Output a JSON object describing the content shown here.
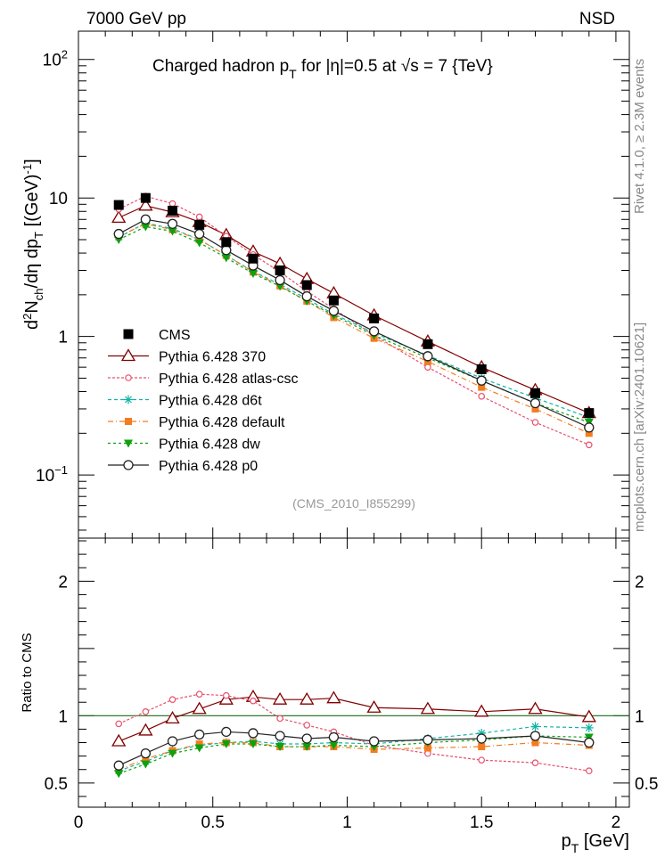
{
  "header": {
    "left": "7000 GeV pp",
    "right": "NSD",
    "title": "Charged hadron p",
    "title_sub": "T",
    "title_rest": " for |η|=0.5 at  √s = 7 {TeV}",
    "analysis_id": "(CMS_2010_I855299)",
    "side_rivet": "Rivet 4.1.0, ≥ 2.3M events",
    "side_mcplots": "mcplots.cern.ch [arXiv:2401.10621]"
  },
  "chart_data": [
    {
      "type": "line",
      "title": "Charged hadron pT for |η|=0.5 at √s = 7 {TeV}",
      "xlabel": "p_T [GeV]",
      "ylabel": "d²N_ch/dη dp_T [(GeV)⁻¹]",
      "yscale": "log",
      "xlim": [
        0,
        2.05
      ],
      "ylim": [
        0.035,
        160
      ],
      "y_ticks": [
        {
          "value": 0.1,
          "label": "10",
          "exp": "−1"
        },
        {
          "value": 1,
          "label": "1",
          "exp": ""
        },
        {
          "value": 10,
          "label": "10",
          "exp": ""
        },
        {
          "value": 100,
          "label": "10",
          "exp": "2"
        }
      ],
      "x": [
        0.15,
        0.25,
        0.35,
        0.45,
        0.55,
        0.65,
        0.75,
        0.85,
        0.95,
        1.1,
        1.3,
        1.5,
        1.7,
        1.9
      ],
      "series": [
        {
          "name": "CMS",
          "marker": "square",
          "color": "#000000",
          "dash": "",
          "values": [
            8.9,
            10.0,
            8.1,
            6.4,
            4.8,
            3.65,
            3.0,
            2.35,
            1.82,
            1.35,
            0.88,
            0.58,
            0.39,
            0.28
          ]
        },
        {
          "name": "Pythia 6.428 370",
          "marker": "triangle-open",
          "color": "#800000",
          "dash": "",
          "values": [
            7.2,
            8.8,
            7.9,
            6.7,
            5.4,
            4.1,
            3.35,
            2.6,
            2.05,
            1.42,
            0.92,
            0.6,
            0.41,
            0.28
          ]
        },
        {
          "name": "Pythia 6.428 atlas-csc",
          "marker": "circle-open-small",
          "color": "#e8506e",
          "dash": "3,2",
          "values": [
            8.3,
            10.3,
            9.1,
            7.3,
            5.3,
            3.9,
            2.92,
            2.12,
            1.58,
            1.02,
            0.6,
            0.37,
            0.24,
            0.165
          ]
        },
        {
          "name": "Pythia 6.428 d6t",
          "marker": "star",
          "color": "#12b3a3",
          "dash": "4,3",
          "values": [
            5.2,
            6.6,
            6.0,
            5.0,
            3.85,
            2.95,
            2.38,
            1.87,
            1.45,
            1.06,
            0.73,
            0.5,
            0.36,
            0.26
          ]
        },
        {
          "name": "Pythia 6.428 default",
          "marker": "square-small",
          "color": "#f47c20",
          "dash": "6,3,1,3",
          "values": [
            5.3,
            6.5,
            5.9,
            5.0,
            3.85,
            2.92,
            2.32,
            1.8,
            1.37,
            0.97,
            0.66,
            0.43,
            0.3,
            0.2
          ]
        },
        {
          "name": "Pythia 6.428 dw",
          "marker": "triangle-down",
          "color": "#0ea10e",
          "dash": "3,3",
          "values": [
            5.0,
            6.2,
            5.75,
            4.75,
            3.7,
            2.85,
            2.3,
            1.8,
            1.42,
            1.02,
            0.7,
            0.48,
            0.33,
            0.24
          ]
        },
        {
          "name": "Pythia 6.428 p0",
          "marker": "circle-open",
          "color": "#222222",
          "dash": "",
          "values": [
            5.5,
            7.0,
            6.5,
            5.5,
            4.2,
            3.25,
            2.55,
            1.95,
            1.53,
            1.09,
            0.72,
            0.48,
            0.33,
            0.22
          ]
        }
      ],
      "legend": "lower-left"
    },
    {
      "type": "line",
      "ylabel": "Ratio to CMS",
      "xlabel": "p_T [GeV]",
      "xlim": [
        0,
        2.05
      ],
      "ylim": [
        0.32,
        2.32
      ],
      "x_ticks": [
        {
          "value": 0,
          "label": "0"
        },
        {
          "value": 0.5,
          "label": "0.5"
        },
        {
          "value": 1,
          "label": "1"
        },
        {
          "value": 1.5,
          "label": "1.5"
        },
        {
          "value": 2,
          "label": "2"
        }
      ],
      "y_ticks": [
        {
          "value": 0.5,
          "label": "0.5"
        },
        {
          "value": 1,
          "label": "1"
        },
        {
          "value": 2,
          "label": "2"
        }
      ],
      "reference_line": 1,
      "x": [
        0.15,
        0.25,
        0.35,
        0.45,
        0.55,
        0.65,
        0.75,
        0.85,
        0.95,
        1.1,
        1.3,
        1.5,
        1.7,
        1.9
      ],
      "series": [
        {
          "name": "Pythia 6.428 370",
          "values": [
            0.81,
            0.89,
            0.98,
            1.05,
            1.12,
            1.14,
            1.12,
            1.12,
            1.13,
            1.06,
            1.05,
            1.03,
            1.05,
            0.99
          ]
        },
        {
          "name": "Pythia 6.428 atlas-csc",
          "values": [
            0.94,
            1.03,
            1.12,
            1.16,
            1.15,
            1.11,
            0.98,
            0.93,
            0.88,
            0.78,
            0.72,
            0.67,
            0.65,
            0.59
          ]
        },
        {
          "name": "Pythia 6.428 d6t",
          "values": [
            0.59,
            0.66,
            0.74,
            0.78,
            0.8,
            0.81,
            0.79,
            0.79,
            0.8,
            0.79,
            0.83,
            0.87,
            0.92,
            0.91
          ]
        },
        {
          "name": "Pythia 6.428 default",
          "values": [
            0.6,
            0.68,
            0.74,
            0.79,
            0.8,
            0.8,
            0.77,
            0.77,
            0.77,
            0.75,
            0.76,
            0.77,
            0.8,
            0.78
          ]
        },
        {
          "name": "Pythia 6.428 dw",
          "values": [
            0.57,
            0.64,
            0.72,
            0.76,
            0.79,
            0.79,
            0.77,
            0.77,
            0.78,
            0.77,
            0.8,
            0.82,
            0.85,
            0.84
          ]
        },
        {
          "name": "Pythia 6.428 p0",
          "values": [
            0.63,
            0.72,
            0.81,
            0.86,
            0.88,
            0.87,
            0.85,
            0.83,
            0.84,
            0.81,
            0.82,
            0.83,
            0.85,
            0.8
          ]
        }
      ]
    }
  ]
}
